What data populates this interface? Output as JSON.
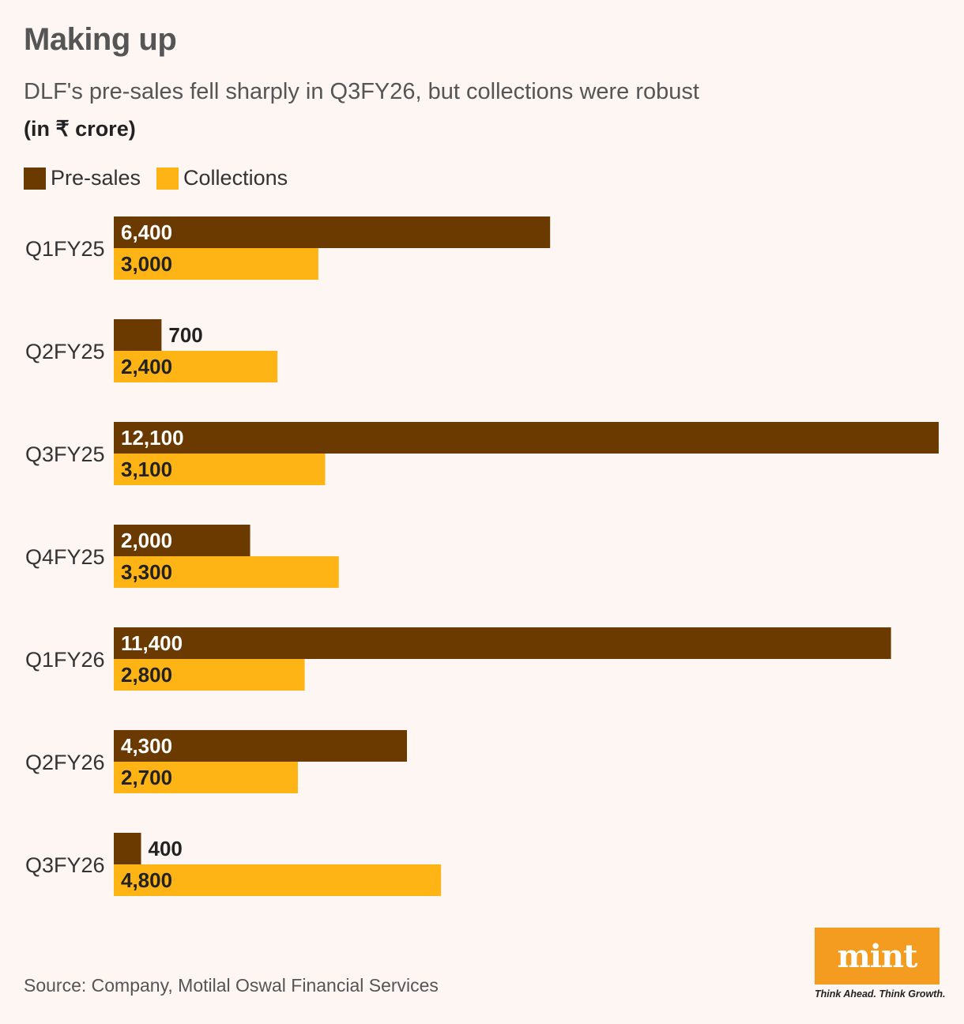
{
  "header": {
    "title": "Making up",
    "subtitle": "DLF's pre-sales fell sharply in Q3FY26, but collections were robust",
    "unit": "(in ₹ crore)"
  },
  "legend": {
    "items": [
      {
        "label": "Pre-sales",
        "color": "#6b3a00"
      },
      {
        "label": "Collections",
        "color": "#fdb414"
      }
    ]
  },
  "chart_data": {
    "type": "bar",
    "orientation": "horizontal",
    "title": "Making up",
    "subtitle": "DLF's pre-sales fell sharply in Q3FY26, but collections were robust",
    "unit": "(in ₹ crore)",
    "categories": [
      "Q1FY25",
      "Q2FY25",
      "Q3FY25",
      "Q4FY25",
      "Q1FY26",
      "Q2FY26",
      "Q3FY26"
    ],
    "series": [
      {
        "name": "Pre-sales",
        "color": "#6b3a00",
        "values": [
          6400,
          700,
          12100,
          2000,
          11400,
          4300,
          400
        ],
        "labels": [
          "6,400",
          "700",
          "12,100",
          "2,000",
          "11,400",
          "4,300",
          "400"
        ]
      },
      {
        "name": "Collections",
        "color": "#fdb414",
        "values": [
          3000,
          2400,
          3100,
          3300,
          2800,
          2700,
          4800
        ],
        "labels": [
          "3,000",
          "2,400",
          "3,100",
          "3,300",
          "2,800",
          "2,700",
          "4,800"
        ]
      }
    ],
    "xlim": [
      0,
      12100
    ],
    "grid": false,
    "legend": "top-left"
  },
  "footer": {
    "source": "Source: Company, Motilal Oswal Financial Services",
    "brand": "mint",
    "tagline": "Think Ahead. Think Growth."
  }
}
